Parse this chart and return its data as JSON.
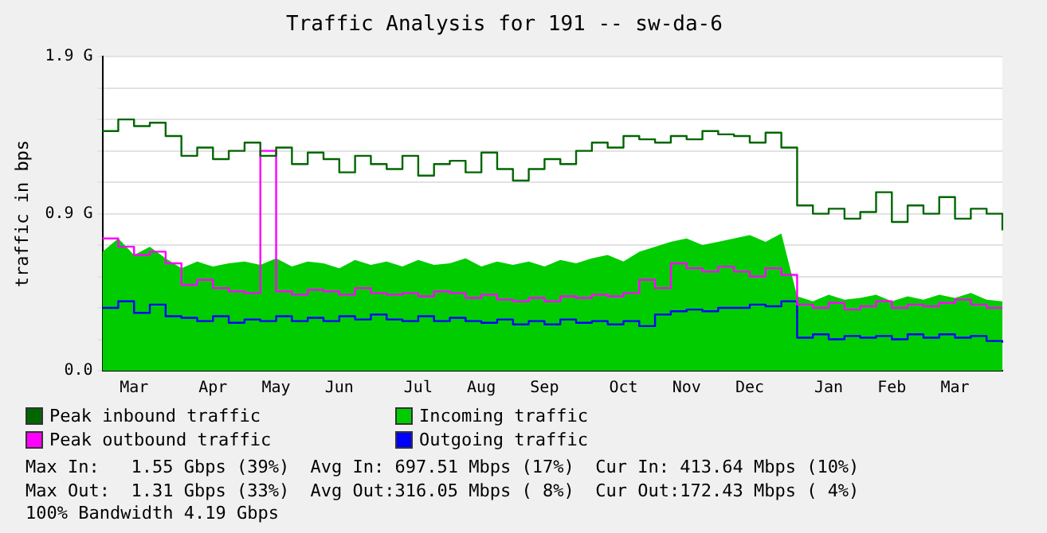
{
  "chart_data": {
    "type": "line",
    "title": "Traffic Analysis for 191 -- sw-da-6",
    "ylabel": "traffic in bps",
    "categories": [
      null,
      null,
      "Mar",
      null,
      null,
      null,
      null,
      "Apr",
      null,
      null,
      null,
      "May",
      null,
      null,
      null,
      "Jun",
      null,
      null,
      null,
      null,
      "Jul",
      null,
      null,
      null,
      "Aug",
      null,
      null,
      null,
      "Sep",
      null,
      null,
      null,
      null,
      "Oct",
      null,
      null,
      null,
      "Nov",
      null,
      null,
      null,
      "Dec",
      null,
      null,
      null,
      null,
      "Jan",
      null,
      null,
      null,
      "Feb",
      null,
      null,
      null,
      "Mar",
      null,
      null,
      null
    ],
    "series": [
      {
        "name": "Peak inbound traffic",
        "type": "step",
        "color": "#006600",
        "values": [
          1.45,
          1.52,
          1.48,
          1.5,
          1.42,
          1.3,
          1.35,
          1.28,
          1.33,
          1.38,
          1.3,
          1.35,
          1.25,
          1.32,
          1.28,
          1.2,
          1.3,
          1.25,
          1.22,
          1.3,
          1.18,
          1.25,
          1.27,
          1.2,
          1.32,
          1.22,
          1.15,
          1.22,
          1.28,
          1.25,
          1.33,
          1.38,
          1.35,
          1.42,
          1.4,
          1.38,
          1.42,
          1.4,
          1.45,
          1.43,
          1.42,
          1.38,
          1.44,
          1.35,
          1.0,
          0.95,
          0.98,
          0.92,
          0.96,
          1.08,
          0.9,
          1.0,
          0.95,
          1.05,
          0.92,
          0.98,
          0.95,
          0.85
        ]
      },
      {
        "name": "Incoming traffic",
        "type": "area",
        "color": "#00cc00",
        "values": [
          0.72,
          0.8,
          0.7,
          0.75,
          0.68,
          0.62,
          0.66,
          0.63,
          0.65,
          0.66,
          0.64,
          0.68,
          0.63,
          0.66,
          0.65,
          0.62,
          0.67,
          0.64,
          0.66,
          0.63,
          0.67,
          0.64,
          0.65,
          0.68,
          0.63,
          0.66,
          0.64,
          0.66,
          0.63,
          0.67,
          0.65,
          0.68,
          0.7,
          0.66,
          0.72,
          0.75,
          0.78,
          0.8,
          0.76,
          0.78,
          0.8,
          0.82,
          0.78,
          0.83,
          0.45,
          0.42,
          0.46,
          0.43,
          0.44,
          0.46,
          0.42,
          0.45,
          0.43,
          0.46,
          0.44,
          0.47,
          0.43,
          0.42
        ]
      },
      {
        "name": "Peak outbound traffic",
        "type": "step",
        "color": "#ff00ff",
        "values": [
          0.8,
          0.75,
          0.7,
          0.72,
          0.65,
          0.52,
          0.55,
          0.5,
          0.48,
          0.47,
          1.33,
          0.48,
          0.46,
          0.49,
          0.48,
          0.46,
          0.5,
          0.47,
          0.46,
          0.47,
          0.45,
          0.48,
          0.47,
          0.44,
          0.46,
          0.43,
          0.42,
          0.44,
          0.42,
          0.45,
          0.44,
          0.46,
          0.45,
          0.47,
          0.55,
          0.5,
          0.65,
          0.62,
          0.6,
          0.63,
          0.6,
          0.57,
          0.62,
          0.58,
          0.4,
          0.38,
          0.41,
          0.37,
          0.39,
          0.42,
          0.38,
          0.4,
          0.39,
          0.41,
          0.43,
          0.4,
          0.38,
          0.38
        ]
      },
      {
        "name": "Outgoing traffic",
        "type": "step",
        "color": "#0000ff",
        "values": [
          0.38,
          0.42,
          0.35,
          0.4,
          0.33,
          0.32,
          0.3,
          0.33,
          0.29,
          0.31,
          0.3,
          0.33,
          0.3,
          0.32,
          0.3,
          0.33,
          0.31,
          0.34,
          0.31,
          0.3,
          0.33,
          0.3,
          0.32,
          0.3,
          0.29,
          0.31,
          0.28,
          0.3,
          0.28,
          0.31,
          0.29,
          0.3,
          0.28,
          0.3,
          0.27,
          0.34,
          0.36,
          0.37,
          0.36,
          0.38,
          0.38,
          0.4,
          0.39,
          0.42,
          0.2,
          0.22,
          0.19,
          0.21,
          0.2,
          0.21,
          0.19,
          0.22,
          0.2,
          0.22,
          0.2,
          0.21,
          0.18,
          0.17
        ]
      }
    ],
    "ylim": [
      0,
      1.9
    ],
    "yticks": [
      {
        "value": 0,
        "label": "0.0"
      },
      {
        "value": 0.19,
        "label": null
      },
      {
        "value": 0.38,
        "label": null
      },
      {
        "value": 0.57,
        "label": null
      },
      {
        "value": 0.76,
        "label": null
      },
      {
        "value": 0.95,
        "label": "0.9 G"
      },
      {
        "value": 1.14,
        "label": null
      },
      {
        "value": 1.33,
        "label": null
      },
      {
        "value": 1.52,
        "label": null
      },
      {
        "value": 1.71,
        "label": null
      },
      {
        "value": 1.9,
        "label": "1.9 G"
      }
    ],
    "grid": "y",
    "legend": "bottom",
    "annotations": [
      "Max In:   1.55 Gbps (39%)  Avg In: 697.51 Mbps (17%)  Cur In: 413.64 Mbps (10%)",
      "Max Out:  1.31 Gbps (33%)  Avg Out:316.05 Mbps ( 8%)  Cur Out:172.43 Mbps ( 4%)",
      "100% Bandwidth 4.19 Gbps"
    ]
  }
}
